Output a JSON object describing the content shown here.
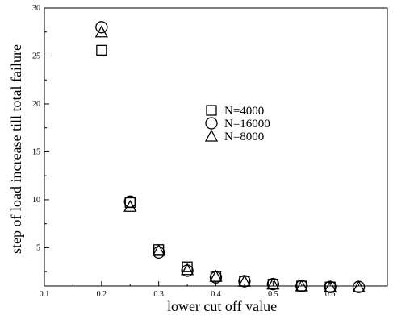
{
  "chart_data": {
    "type": "scatter",
    "title": "",
    "xlabel": "lower cut off value",
    "ylabel": "step of load increase till total failure",
    "xlim": [
      0.1,
      0.7
    ],
    "ylim": [
      1,
      30
    ],
    "x_ticks": [
      0.1,
      0.2,
      0.3,
      0.4,
      0.5,
      0.6
    ],
    "y_ticks": [
      5,
      10,
      15,
      20,
      25,
      30
    ],
    "grid": false,
    "legend_position": "center-right",
    "series": [
      {
        "name": "N=4000",
        "marker": "square",
        "x": [
          0.2,
          0.25,
          0.3,
          0.35,
          0.4,
          0.45,
          0.5,
          0.55,
          0.6
        ],
        "y": [
          25.6,
          9.7,
          4.8,
          3.0,
          2.0,
          1.5,
          1.2,
          1.0,
          0.9
        ]
      },
      {
        "name": "N=16000",
        "marker": "circle",
        "x": [
          0.2,
          0.25,
          0.3,
          0.35,
          0.4,
          0.45,
          0.5,
          0.55,
          0.6,
          0.65
        ],
        "y": [
          28.0,
          9.8,
          4.5,
          2.6,
          1.9,
          1.5,
          1.2,
          1.0,
          0.9,
          0.9
        ]
      },
      {
        "name": "N=8000",
        "marker": "triangle",
        "x": [
          0.2,
          0.25,
          0.3,
          0.35,
          0.4,
          0.45,
          0.5,
          0.55,
          0.6,
          0.65
        ],
        "y": [
          27.5,
          9.3,
          4.7,
          2.7,
          2.0,
          1.5,
          1.2,
          1.0,
          0.9,
          0.9
        ]
      }
    ]
  }
}
